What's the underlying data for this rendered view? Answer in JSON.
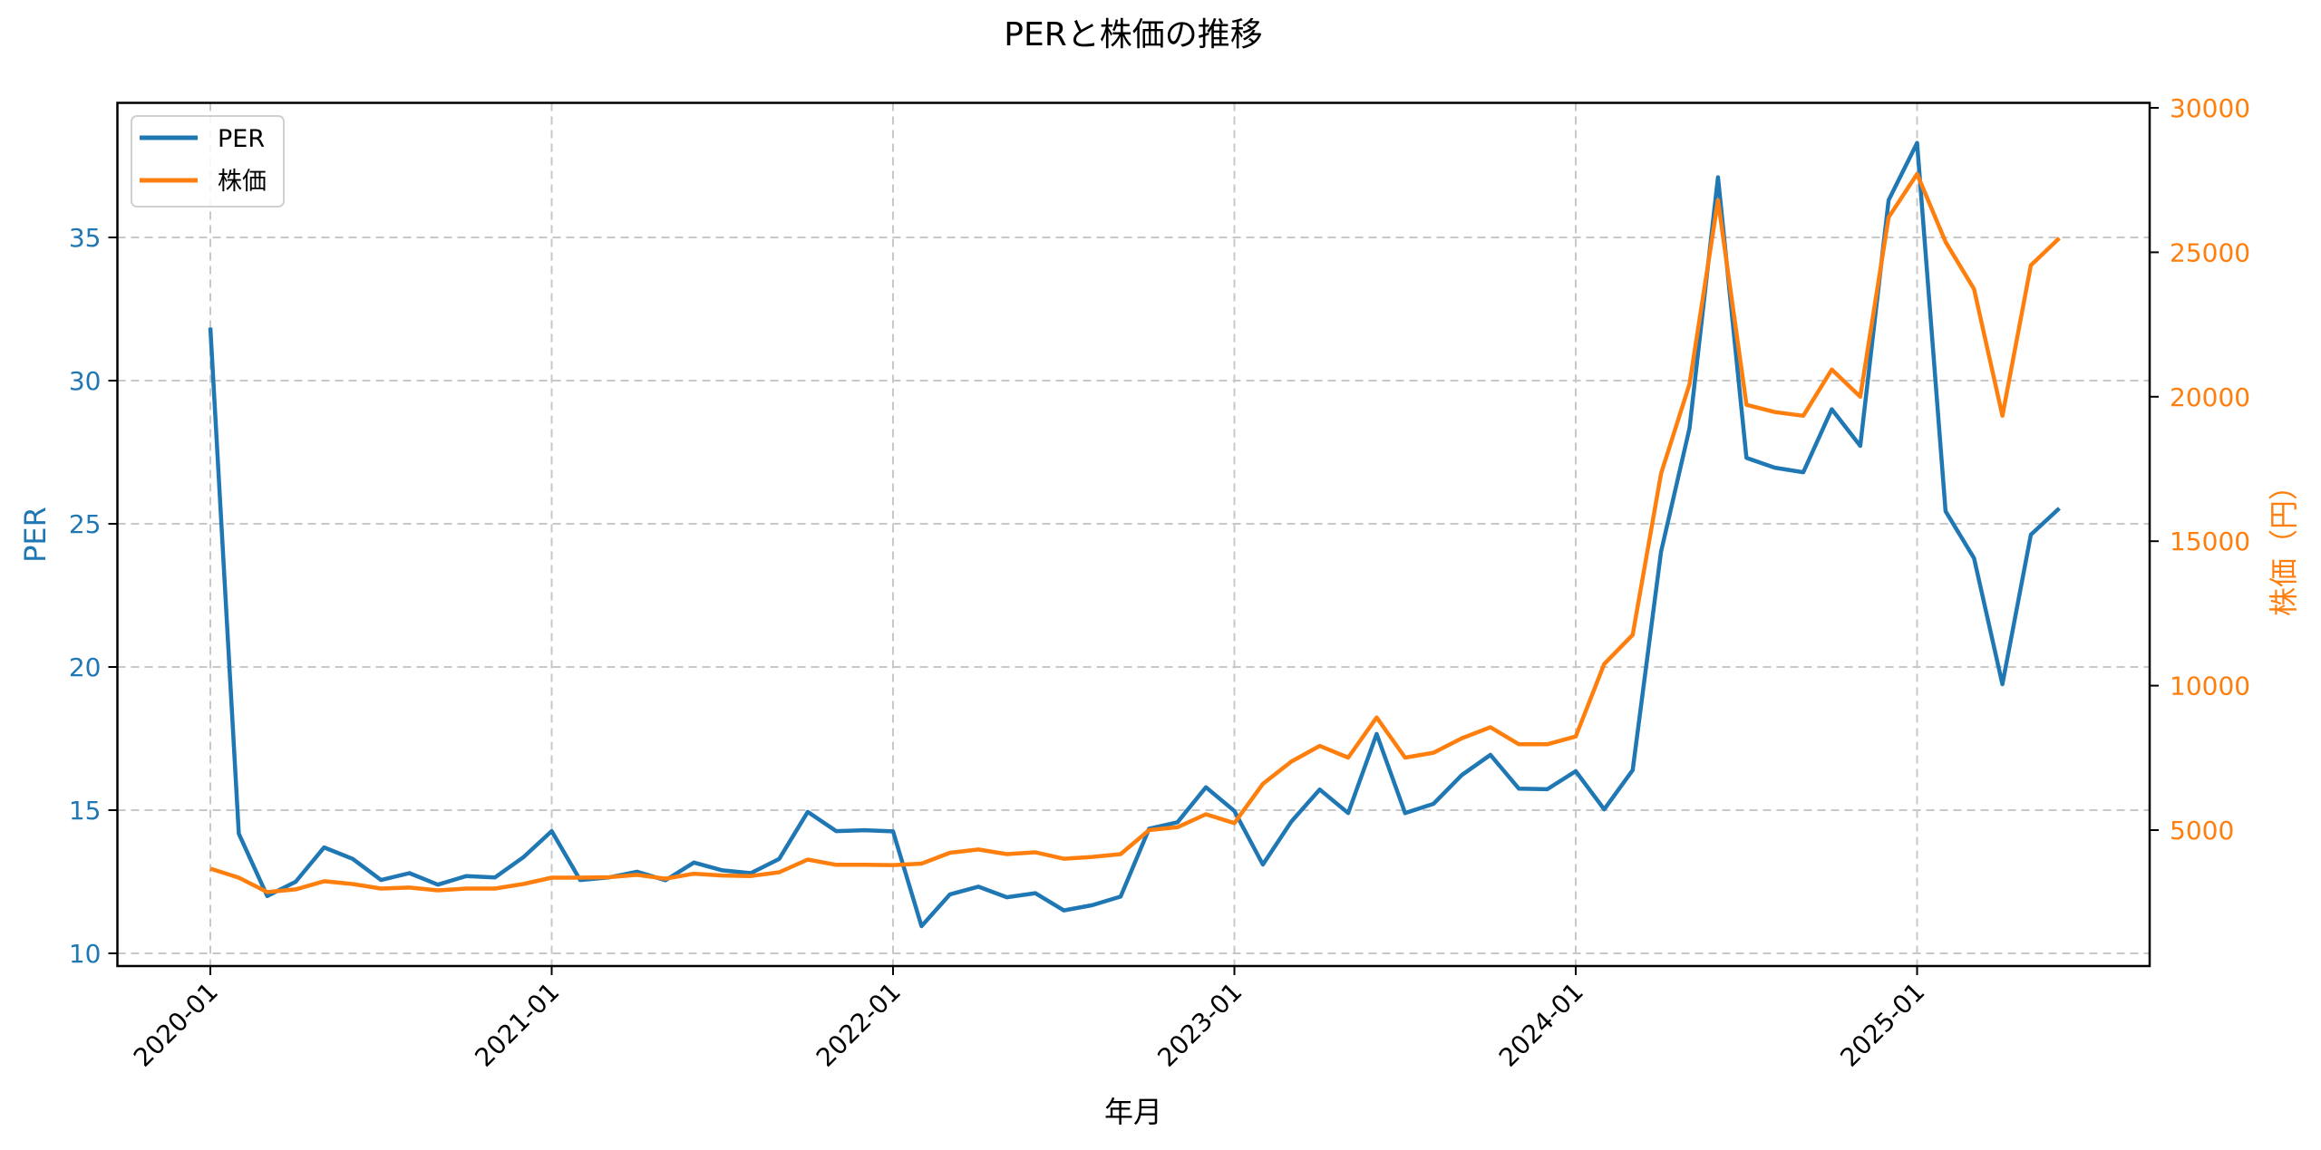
{
  "chart_data": {
    "type": "line",
    "title": "PERと株価の推移",
    "xlabel": "年月",
    "ylabel": "PER",
    "ylabel_right": "株価（円）",
    "x": [
      "2020-01",
      "2020-02",
      "2020-03",
      "2020-04",
      "2020-05",
      "2020-06",
      "2020-07",
      "2020-08",
      "2020-09",
      "2020-10",
      "2020-11",
      "2020-12",
      "2021-01",
      "2021-02",
      "2021-03",
      "2021-04",
      "2021-05",
      "2021-06",
      "2021-07",
      "2021-08",
      "2021-09",
      "2021-10",
      "2021-11",
      "2021-12",
      "2022-01",
      "2022-02",
      "2022-03",
      "2022-04",
      "2022-05",
      "2022-06",
      "2022-07",
      "2022-08",
      "2022-09",
      "2022-10",
      "2022-11",
      "2022-12",
      "2023-01",
      "2023-02",
      "2023-03",
      "2023-04",
      "2023-05",
      "2023-06",
      "2023-07",
      "2023-08",
      "2023-09",
      "2023-10",
      "2023-11",
      "2023-12",
      "2024-01",
      "2024-02",
      "2024-03",
      "2024-04",
      "2024-05",
      "2024-06",
      "2024-07",
      "2024-08",
      "2024-09",
      "2024-10",
      "2024-11",
      "2024-12",
      "2025-01",
      "2025-02",
      "2025-03",
      "2025-04",
      "2025-05",
      "2025-06"
    ],
    "x_ticks": [
      "2020-01",
      "2021-01",
      "2022-01",
      "2023-01",
      "2024-01",
      "2025-01"
    ],
    "series": [
      {
        "name": "PER",
        "axis": "left",
        "color": "#1f77b4",
        "values": [
          31.85,
          14.18,
          12.0,
          12.5,
          13.7,
          13.3,
          12.56,
          12.8,
          12.4,
          12.7,
          12.65,
          13.35,
          14.27,
          12.56,
          12.65,
          12.85,
          12.55,
          13.17,
          12.9,
          12.8,
          13.3,
          14.94,
          14.27,
          14.3,
          14.26,
          10.95,
          12.06,
          12.33,
          11.96,
          12.1,
          11.5,
          11.68,
          11.98,
          14.35,
          14.58,
          15.8,
          14.97,
          13.1,
          14.6,
          15.72,
          14.9,
          17.66,
          14.9,
          15.22,
          16.23,
          16.93,
          15.75,
          15.73,
          16.36,
          15.03,
          16.4,
          24.03,
          28.34,
          37.1,
          27.3,
          26.96,
          26.8,
          29.0,
          27.72,
          36.3,
          38.3,
          25.44,
          23.8,
          19.4,
          24.62,
          25.54
        ]
      },
      {
        "name": "株価",
        "axis": "right",
        "color": "#ff7f0e",
        "values": [
          3668,
          3354,
          2853,
          2947,
          3230,
          3135,
          2978,
          3010,
          2915,
          2978,
          2978,
          3135,
          3354,
          3354,
          3370,
          3450,
          3320,
          3490,
          3430,
          3410,
          3540,
          3980,
          3800,
          3800,
          3790,
          3840,
          4215,
          4330,
          4170,
          4230,
          4010,
          4070,
          4170,
          5000,
          5100,
          5550,
          5240,
          6600,
          7370,
          7915,
          7510,
          8900,
          7510,
          7680,
          8180,
          8560,
          7970,
          7970,
          8240,
          10750,
          11760,
          17340,
          20440,
          26800,
          19720,
          19470,
          19340,
          20940,
          20000,
          26210,
          27710,
          25360,
          23730,
          19340,
          24550,
          25490
        ]
      }
    ],
    "ylim": [
      9.55,
      39.8
    ],
    "ylim_right": [
      406,
      30150
    ],
    "yticks": [
      10,
      15,
      20,
      25,
      30,
      35
    ],
    "yticks_right": [
      5000,
      10000,
      15000,
      20000,
      25000,
      30000
    ],
    "grid": true,
    "legend_position": "upper left"
  },
  "legend": {
    "items": [
      {
        "label": "PER",
        "color": "#1f77b4"
      },
      {
        "label": "株価",
        "color": "#ff7f0e"
      }
    ]
  }
}
